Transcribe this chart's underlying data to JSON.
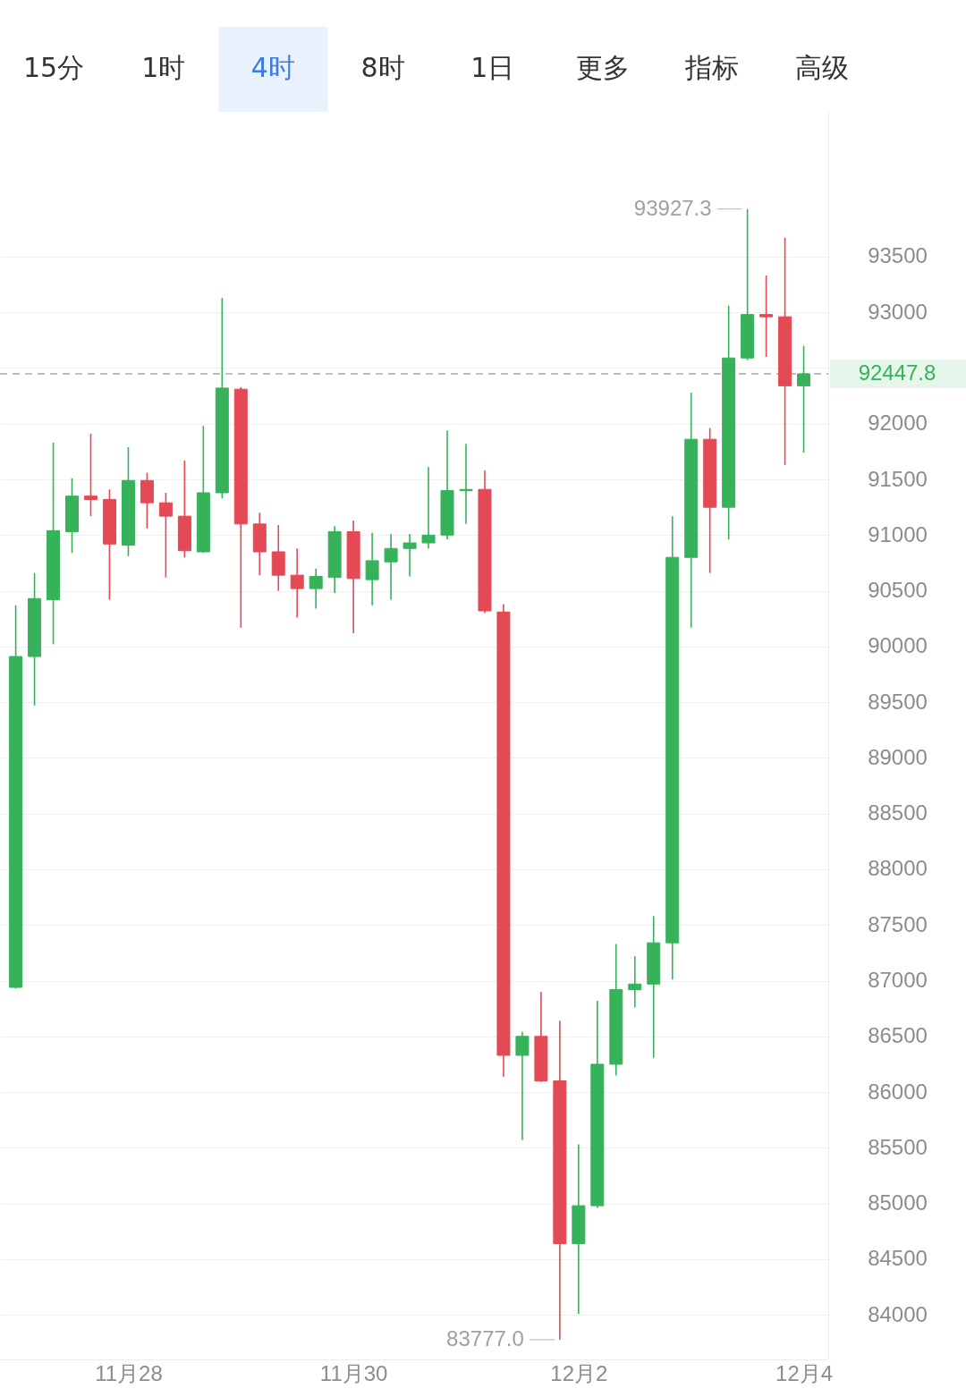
{
  "chart_data": {
    "type": "candlestick",
    "categories": [
      null,
      null,
      null,
      null,
      null,
      null,
      "11月28",
      null,
      null,
      null,
      null,
      null,
      null,
      null,
      null,
      null,
      null,
      null,
      "11月30",
      null,
      null,
      null,
      null,
      null,
      null,
      null,
      null,
      null,
      null,
      null,
      "12月2",
      null,
      null,
      null,
      null,
      null,
      null,
      null,
      null,
      null,
      null,
      null,
      "12月4"
    ],
    "ohlc": [
      [
        86940,
        90370,
        86930,
        89910
      ],
      [
        89910,
        90660,
        89470,
        90430
      ],
      [
        90420,
        91830,
        90020,
        91040
      ],
      [
        91030,
        91510,
        90840,
        91350
      ],
      [
        91350,
        91910,
        91170,
        91320
      ],
      [
        91320,
        91410,
        90420,
        90920
      ],
      [
        90910,
        91790,
        90810,
        91490
      ],
      [
        91490,
        91560,
        91060,
        91290
      ],
      [
        91290,
        91380,
        90620,
        91170
      ],
      [
        91170,
        91670,
        90800,
        90860
      ],
      [
        90850,
        91980,
        90840,
        91380
      ],
      [
        91380,
        93130,
        91330,
        92320
      ],
      [
        92310,
        92330,
        90170,
        91100
      ],
      [
        91100,
        91200,
        90640,
        90850
      ],
      [
        90850,
        91090,
        90500,
        90640
      ],
      [
        90640,
        90880,
        90260,
        90520
      ],
      [
        90520,
        90700,
        90340,
        90630
      ],
      [
        90620,
        91080,
        90480,
        91030
      ],
      [
        91030,
        91130,
        90120,
        90610
      ],
      [
        90600,
        91020,
        90370,
        90770
      ],
      [
        90760,
        91010,
        90420,
        90880
      ],
      [
        90880,
        91010,
        90630,
        90930
      ],
      [
        90930,
        91610,
        90880,
        91000
      ],
      [
        91000,
        91940,
        90960,
        91400
      ],
      [
        91400,
        91820,
        91100,
        91410
      ],
      [
        91410,
        91580,
        90300,
        90320
      ],
      [
        90310,
        90380,
        86140,
        86330
      ],
      [
        86330,
        86540,
        85570,
        86500
      ],
      [
        86500,
        86900,
        86090,
        86100
      ],
      [
        86100,
        86640,
        83777.0,
        84640
      ],
      [
        84640,
        85530,
        84010,
        84980
      ],
      [
        84980,
        86820,
        84960,
        86250
      ],
      [
        86250,
        87330,
        86150,
        86920
      ],
      [
        86920,
        87220,
        86760,
        86970
      ],
      [
        86970,
        87580,
        86310,
        87340
      ],
      [
        87340,
        91170,
        87010,
        90800
      ],
      [
        90800,
        92280,
        90170,
        91860
      ],
      [
        91860,
        91960,
        90660,
        91250
      ],
      [
        91250,
        93060,
        90960,
        92590
      ],
      [
        92590,
        93927.3,
        92570,
        92980
      ],
      [
        92980,
        93330,
        92600,
        92960
      ],
      [
        92960,
        93670,
        91630,
        92340
      ],
      [
        92340,
        92700,
        91740,
        92447.8
      ]
    ],
    "colors": [
      "#36b25b",
      "#36b25b",
      "#36b25b",
      "#36b25b",
      "#e34a55",
      "#e34a55",
      "#36b25b",
      "#e34a55",
      "#e34a55",
      "#e34a55",
      "#36b25b",
      "#36b25b",
      "#e34a55",
      "#e34a55",
      "#e34a55",
      "#e34a55",
      "#36b25b",
      "#36b25b",
      "#e34a55",
      "#36b25b",
      "#36b25b",
      "#36b25b",
      "#36b25b",
      "#36b25b",
      "#36b25b",
      "#e34a55",
      "#e34a55",
      "#36b25b",
      "#e34a55",
      "#e34a55",
      "#36b25b",
      "#36b25b",
      "#36b25b",
      "#36b25b",
      "#36b25b",
      "#36b25b",
      "#36b25b",
      "#e34a55",
      "#36b25b",
      "#36b25b",
      "#e34a55",
      "#e34a55",
      "#36b25b"
    ],
    "ylim": [
      83600,
      94800
    ],
    "yticks": [
      84000,
      84500,
      85000,
      85500,
      86000,
      86500,
      87000,
      87500,
      88000,
      88500,
      89000,
      89500,
      90000,
      90500,
      91000,
      91500,
      92000,
      {
        "value": 92500,
        "label": null
      },
      93000,
      93500
    ],
    "grid": "y",
    "ref_lines": [
      {
        "axis": "y",
        "value": 92447.8,
        "label": "92447.8",
        "color": "#aaaaaa",
        "line_style": "dashed"
      }
    ],
    "annotations": [
      "15分",
      "1时",
      "4时",
      "8时",
      "1日",
      "更多",
      "指标",
      "高级",
      "93927.3",
      "83777.0"
    ]
  }
}
